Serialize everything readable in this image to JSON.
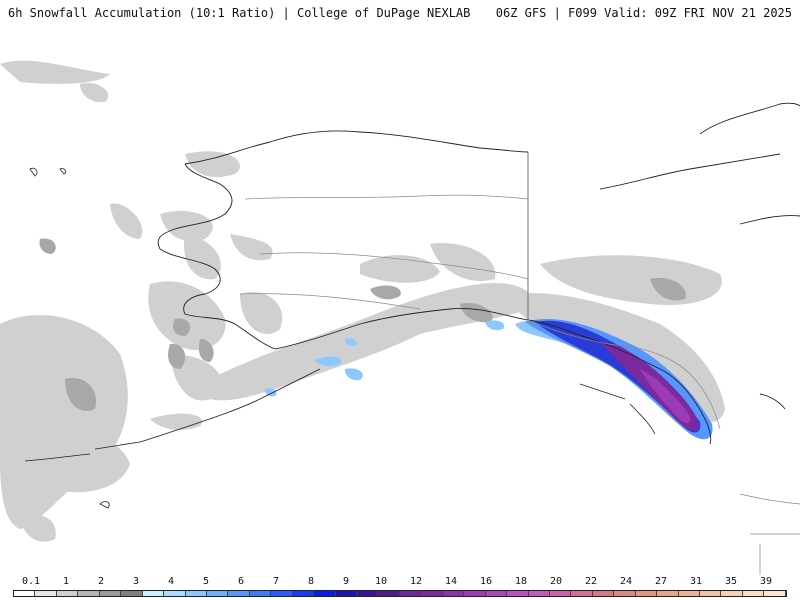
{
  "header": {
    "left": "6h Snowfall Accumulation (10:1 Ratio) | College of DuPage NEXLAB",
    "right": "06Z GFS | F099 Valid: 09Z FRI NOV 21 2025"
  },
  "legend": {
    "labels": [
      "0.1",
      "1",
      "2",
      "3",
      "4",
      "5",
      "6",
      "7",
      "8",
      "9",
      "10",
      "12",
      "14",
      "16",
      "18",
      "20",
      "22",
      "24",
      "27",
      "31",
      "35",
      "39"
    ],
    "colors": [
      "#ffffff",
      "#e6e6e6",
      "#cfcfcf",
      "#b4b4b4",
      "#9a9a9a",
      "#7f7f7f",
      "#c8f0ff",
      "#a8dcff",
      "#8cc8ff",
      "#6fb0ff",
      "#5896ff",
      "#3c7cff",
      "#2a5cff",
      "#1a3cf5",
      "#0a1ee6",
      "#1b14b4",
      "#3a1496",
      "#521a8c",
      "#6a2896",
      "#7c28a0",
      "#8c32aa",
      "#9b3cb4",
      "#aa46b9",
      "#b950c3",
      "#c35ab9",
      "#cd64aa",
      "#d26e96",
      "#d77887",
      "#dc8782",
      "#e1967d",
      "#e6a587",
      "#ebb496",
      "#f0c3a5",
      "#f5d2b4",
      "#f8dcc3",
      "#fae6d2"
    ]
  }
}
